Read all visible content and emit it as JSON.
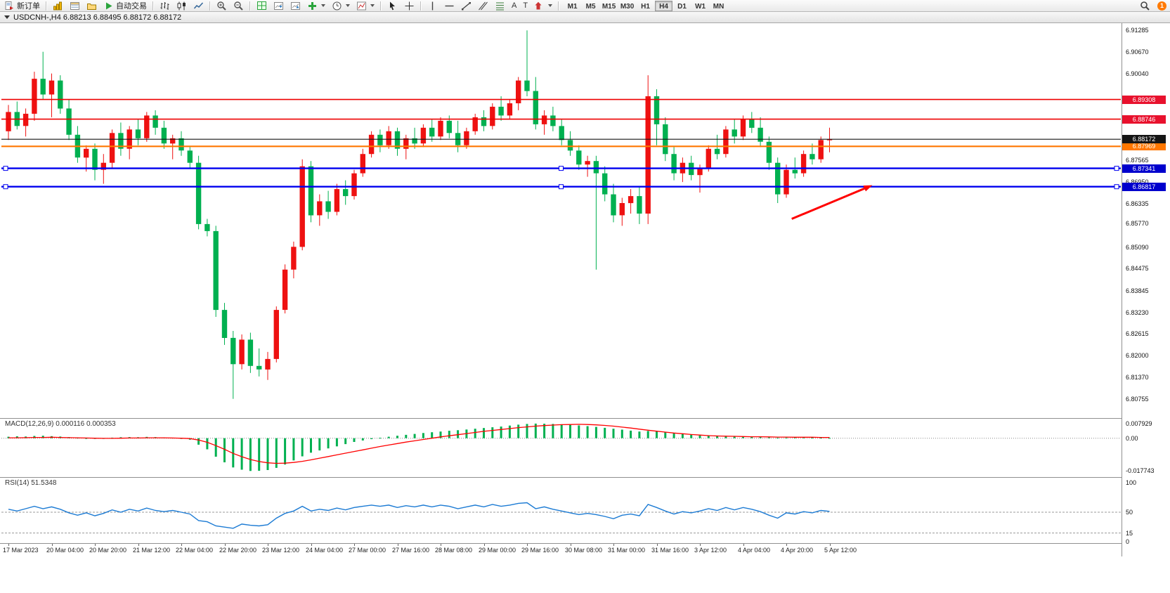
{
  "toolbar": {
    "new_order_label": "新订单",
    "auto_trading_label": "自动交易",
    "timeframes": [
      "M1",
      "M5",
      "M15",
      "M30",
      "H1",
      "H4",
      "D1",
      "W1",
      "MN"
    ],
    "active_timeframe": "H4",
    "notification_count": "1"
  },
  "chart_window": {
    "title": "USDCNH-,H4  6.88213 6.88495 6.88172 6.88172",
    "symbol": "USDCNH-",
    "timeframe": "H4",
    "ohlc": {
      "open": "6.88213",
      "high": "6.88495",
      "low": "6.88172",
      "close": "6.88172"
    }
  },
  "chart_data": [
    {
      "type": "candlestick",
      "title": "USDCNH- H4",
      "up_color": "#ee1111",
      "down_color": "#00b050",
      "price_axis": {
        "scale_max": 6.91486,
        "scale_min": 6.80212,
        "ticks": [
          "6.91285",
          "6.90670",
          "6.90040",
          "6.87565",
          "6.86950",
          "6.86335",
          "6.85770",
          "6.85090",
          "6.84475",
          "6.83845",
          "6.83230",
          "6.82615",
          "6.82000",
          "6.81370",
          "6.80755"
        ]
      },
      "time_labels": [
        "17 Mar 2023",
        "20 Mar 04:00",
        "20 Mar 20:00",
        "21 Mar 12:00",
        "22 Mar 04:00",
        "22 Mar 20:00",
        "23 Mar 12:00",
        "24 Mar 04:00",
        "27 Mar 00:00",
        "27 Mar 16:00",
        "28 Mar 08:00",
        "29 Mar 00:00",
        "29 Mar 16:00",
        "30 Mar 08:00",
        "31 Mar 00:00",
        "31 Mar 16:00",
        "3 Apr 12:00",
        "4 Apr 04:00",
        "4 Apr 20:00",
        "5 Apr 12:00"
      ],
      "hlines": [
        {
          "name": "resistance-line-1",
          "price": 6.89308,
          "label": "6.89308",
          "color": "#ee0000",
          "width": 1.6,
          "badge": "#e8112d",
          "selected": false
        },
        {
          "name": "resistance-line-2",
          "price": 6.88746,
          "label": "6.88746",
          "color": "#ee0000",
          "width": 1.6,
          "badge": "#e8112d",
          "selected": false
        },
        {
          "name": "pivot-line",
          "price": 6.87969,
          "label": "6.87969",
          "color": "#ff7700",
          "width": 2.2,
          "badge": "#ff7700",
          "selected": false
        },
        {
          "name": "support-line-1",
          "price": 6.87341,
          "label": "6.87341",
          "color": "#0000ee",
          "width": 2.4,
          "badge": "#0000cd",
          "selected": true
        },
        {
          "name": "support-line-2",
          "price": 6.86817,
          "label": "6.86817",
          "color": "#0000ee",
          "width": 2.4,
          "badge": "#0000cd",
          "selected": true
        },
        {
          "name": "current-price-line",
          "price": 6.88172,
          "label": "6.88172",
          "color": "#151515",
          "width": 1.2,
          "badge": "#151515",
          "selected": false
        }
      ],
      "arrow": {
        "x1_frac": 0.706,
        "price1": 6.859,
        "x2_frac": 0.778,
        "price2": 6.8686,
        "color": "#ff0000"
      },
      "candles": [
        [
          6.884,
          6.8915,
          6.8815,
          6.8895
        ],
        [
          6.8895,
          6.8925,
          6.8845,
          6.8855
        ],
        [
          6.8855,
          6.8905,
          6.8825,
          6.889
        ],
        [
          6.889,
          6.901,
          6.887,
          6.899
        ],
        [
          6.899,
          6.9067,
          6.893,
          6.8945
        ],
        [
          6.8945,
          6.9005,
          6.888,
          6.8985
        ],
        [
          6.8985,
          6.9,
          6.889,
          6.8905
        ],
        [
          6.8905,
          6.893,
          6.8815,
          6.883
        ],
        [
          6.883,
          6.8855,
          6.875,
          6.8765
        ],
        [
          6.8765,
          6.88,
          6.8725,
          6.879
        ],
        [
          6.879,
          6.8805,
          6.87,
          6.873
        ],
        [
          6.873,
          6.8775,
          6.869,
          6.875
        ],
        [
          6.875,
          6.8845,
          6.8735,
          6.8835
        ],
        [
          6.8835,
          6.8865,
          6.877,
          6.879
        ],
        [
          6.879,
          6.8855,
          6.876,
          6.8845
        ],
        [
          6.8845,
          6.8875,
          6.88,
          6.882
        ],
        [
          6.882,
          6.8895,
          6.881,
          6.8885
        ],
        [
          6.8885,
          6.89,
          6.883,
          6.885
        ],
        [
          6.885,
          6.887,
          6.879,
          6.8805
        ],
        [
          6.8805,
          6.883,
          6.876,
          6.882
        ],
        [
          6.882,
          6.884,
          6.877,
          6.8785
        ],
        [
          6.8785,
          6.8795,
          6.8735,
          6.875
        ],
        [
          6.875,
          6.877,
          6.856,
          6.8575
        ],
        [
          6.8575,
          6.859,
          6.854,
          6.8555
        ],
        [
          6.8555,
          6.857,
          6.831,
          6.833
        ],
        [
          6.833,
          6.835,
          6.823,
          6.825
        ],
        [
          6.825,
          6.827,
          6.8076,
          6.8175
        ],
        [
          6.8175,
          6.826,
          6.816,
          6.8245
        ],
        [
          6.8245,
          6.8265,
          6.815,
          6.817
        ],
        [
          6.817,
          6.822,
          6.814,
          6.816
        ],
        [
          6.816,
          6.821,
          6.813,
          6.819
        ],
        [
          6.819,
          6.834,
          6.818,
          6.833
        ],
        [
          6.833,
          6.846,
          6.832,
          6.8445
        ],
        [
          6.8445,
          6.8525,
          6.842,
          6.851
        ],
        [
          6.851,
          6.876,
          6.85,
          6.874
        ],
        [
          6.874,
          6.8755,
          6.858,
          6.86
        ],
        [
          6.86,
          6.866,
          6.857,
          6.864
        ],
        [
          6.864,
          6.867,
          6.859,
          6.861
        ],
        [
          6.861,
          6.869,
          6.86,
          6.8675
        ],
        [
          6.8675,
          6.87,
          6.863,
          6.8655
        ],
        [
          6.8655,
          6.873,
          6.8645,
          6.872
        ],
        [
          6.872,
          6.879,
          6.871,
          6.8775
        ],
        [
          6.8775,
          6.884,
          6.8765,
          6.883
        ],
        [
          6.883,
          6.8845,
          6.878,
          6.88
        ],
        [
          6.88,
          6.8855,
          6.879,
          6.884
        ],
        [
          6.884,
          6.885,
          6.877,
          6.879
        ],
        [
          6.879,
          6.883,
          6.876,
          6.882
        ],
        [
          6.882,
          6.885,
          6.879,
          6.8805
        ],
        [
          6.8805,
          6.886,
          6.8795,
          6.885
        ],
        [
          6.885,
          6.8875,
          6.881,
          6.8825
        ],
        [
          6.8825,
          6.888,
          6.8815,
          6.887
        ],
        [
          6.887,
          6.8885,
          6.882,
          6.8835
        ],
        [
          6.8835,
          6.887,
          6.878,
          6.88
        ],
        [
          6.88,
          6.885,
          6.879,
          6.884
        ],
        [
          6.884,
          6.889,
          6.883,
          6.888
        ],
        [
          6.888,
          6.89,
          6.884,
          6.8855
        ],
        [
          6.8855,
          6.892,
          6.8845,
          6.891
        ],
        [
          6.891,
          6.894,
          6.887,
          6.8885
        ],
        [
          6.8885,
          6.893,
          6.8875,
          6.892
        ],
        [
          6.892,
          6.8995,
          6.89,
          6.8985
        ],
        [
          6.8985,
          6.9128,
          6.894,
          6.8955
        ],
        [
          6.8955,
          6.8995,
          6.8845,
          6.886
        ],
        [
          6.886,
          6.89,
          6.883,
          6.8885
        ],
        [
          6.8885,
          6.891,
          6.884,
          6.8855
        ],
        [
          6.8855,
          6.8875,
          6.88,
          6.8815
        ],
        [
          6.8815,
          6.884,
          6.877,
          6.8785
        ],
        [
          6.8785,
          6.88,
          6.873,
          6.8745
        ],
        [
          6.8745,
          6.877,
          6.871,
          6.8755
        ],
        [
          6.8755,
          6.877,
          6.8445,
          6.872
        ],
        [
          6.872,
          6.874,
          6.864,
          6.866
        ],
        [
          6.866,
          6.869,
          6.858,
          6.86
        ],
        [
          6.86,
          6.865,
          6.857,
          6.8635
        ],
        [
          6.8635,
          6.8675,
          6.8605,
          6.8655
        ],
        [
          6.8655,
          6.868,
          6.8575,
          6.8605
        ],
        [
          6.8605,
          6.9,
          6.8575,
          6.894
        ],
        [
          6.894,
          6.896,
          6.88,
          6.886
        ],
        [
          6.886,
          6.888,
          6.8755,
          6.8775
        ],
        [
          6.8775,
          6.8795,
          6.87,
          6.872
        ],
        [
          6.872,
          6.8765,
          6.8695,
          6.875
        ],
        [
          6.875,
          6.877,
          6.87,
          6.8715
        ],
        [
          6.8715,
          6.8745,
          6.8665,
          6.8735
        ],
        [
          6.8735,
          6.88,
          6.8725,
          6.879
        ],
        [
          6.879,
          6.883,
          6.876,
          6.8775
        ],
        [
          6.8775,
          6.8855,
          6.8765,
          6.8845
        ],
        [
          6.8845,
          6.8875,
          6.8805,
          6.8825
        ],
        [
          6.8825,
          6.8885,
          6.8815,
          6.8875
        ],
        [
          6.8875,
          6.8895,
          6.8835,
          6.885
        ],
        [
          6.885,
          6.888,
          6.8795,
          6.881
        ],
        [
          6.881,
          6.8825,
          6.873,
          6.875
        ],
        [
          6.875,
          6.8765,
          6.8635,
          6.866
        ],
        [
          6.866,
          6.8745,
          6.865,
          6.873
        ],
        [
          6.873,
          6.8765,
          6.8705,
          6.872
        ],
        [
          6.872,
          6.8785,
          6.871,
          6.8775
        ],
        [
          6.8775,
          6.8805,
          6.8745,
          6.876
        ],
        [
          6.876,
          6.8825,
          6.875,
          6.8815
        ],
        [
          6.8815,
          6.885,
          6.878,
          6.8817
        ]
      ]
    },
    {
      "type": "macd",
      "label": "MACD(12,26,9)",
      "values_text": "0.000116 0.000353",
      "axis_labels": [
        "0.007929",
        "0.00",
        "-0.017743"
      ],
      "axis_values": [
        0.007929,
        0,
        -0.017743
      ],
      "range": [
        -0.021,
        0.0105
      ],
      "histogram_color": "#00b050",
      "signal_color": "#ff0000",
      "histogram": [
        0.0008,
        0.001,
        0.0009,
        0.0012,
        0.0013,
        0.0011,
        0.0009,
        0.0006,
        0.0002,
        0.0,
        -0.0003,
        -0.0001,
        0.0003,
        0.0005,
        0.0006,
        0.0005,
        0.0007,
        0.0006,
        0.0004,
        0.0002,
        -0.0002,
        -0.0008,
        -0.0035,
        -0.006,
        -0.01,
        -0.013,
        -0.0158,
        -0.017,
        -0.0177,
        -0.0176,
        -0.0172,
        -0.016,
        -0.0142,
        -0.012,
        -0.0098,
        -0.0078,
        -0.0066,
        -0.0055,
        -0.0044,
        -0.0032,
        -0.002,
        -0.0012,
        -0.0005,
        0.0002,
        0.0008,
        0.0013,
        0.0018,
        0.0023,
        0.0028,
        0.0032,
        0.0036,
        0.004,
        0.0043,
        0.0047,
        0.0051,
        0.0055,
        0.0059,
        0.0063,
        0.0068,
        0.0073,
        0.0077,
        0.0079,
        0.0078,
        0.0077,
        0.0075,
        0.0072,
        0.0069,
        0.0065,
        0.0061,
        0.0056,
        0.0051,
        0.0046,
        0.0041,
        0.0036,
        0.0039,
        0.0037,
        0.0032,
        0.0027,
        0.0022,
        0.0018,
        0.0015,
        0.0013,
        0.0012,
        0.0011,
        0.0011,
        0.001,
        0.0009,
        0.0007,
        0.0004,
        0.0002,
        0.0003,
        0.0004,
        0.0004,
        0.0003,
        0.0002,
        0.0001
      ],
      "signal": [
        0.0002,
        0.0002,
        0.0003,
        0.0004,
        0.0004,
        0.0005,
        0.0004,
        0.0003,
        0.0002,
        0.0001,
        0.0,
        -0.0001,
        -0.0001,
        0.0,
        0.0001,
        0.0001,
        0.0002,
        0.0002,
        0.0002,
        0.0001,
        0.0,
        -0.0002,
        -0.001,
        -0.0022,
        -0.004,
        -0.006,
        -0.0082,
        -0.01,
        -0.0115,
        -0.0126,
        -0.0133,
        -0.0136,
        -0.0135,
        -0.0131,
        -0.0125,
        -0.0117,
        -0.0108,
        -0.0099,
        -0.009,
        -0.0081,
        -0.0072,
        -0.0063,
        -0.0054,
        -0.0045,
        -0.0037,
        -0.0029,
        -0.0021,
        -0.0014,
        -0.0007,
        0.0,
        0.0007,
        0.0013,
        0.0019,
        0.0025,
        0.0031,
        0.0037,
        0.0042,
        0.0047,
        0.0052,
        0.0057,
        0.0061,
        0.0065,
        0.0068,
        0.0071,
        0.0073,
        0.0074,
        0.0075,
        0.0074,
        0.0072,
        0.0069,
        0.0065,
        0.006,
        0.0055,
        0.0049,
        0.0043,
        0.0038,
        0.0033,
        0.0028,
        0.0024,
        0.002,
        0.0017,
        0.0014,
        0.0012,
        0.0011,
        0.001,
        0.0009,
        0.0008,
        0.0008,
        0.0007,
        0.0006,
        0.0006,
        0.0005,
        0.0005,
        0.0005,
        0.0004,
        0.0004
      ]
    },
    {
      "type": "rsi",
      "label": "RSI(14)",
      "value_text": "51.5348",
      "axis_labels": [
        "100",
        "50",
        "15",
        "0"
      ],
      "axis_values": [
        100,
        50,
        15,
        0
      ],
      "levels": [
        50,
        15
      ],
      "range": [
        -2,
        108
      ],
      "line_color": "#1c7bd4",
      "values": [
        55,
        52,
        56,
        60,
        56,
        59,
        55,
        49,
        45,
        49,
        44,
        48,
        54,
        50,
        55,
        52,
        57,
        53,
        51,
        53,
        50,
        47,
        36,
        34,
        27,
        25,
        23,
        30,
        28,
        27,
        29,
        40,
        48,
        52,
        60,
        52,
        55,
        53,
        57,
        54,
        58,
        60,
        62,
        60,
        62,
        58,
        61,
        59,
        62,
        59,
        62,
        60,
        56,
        59,
        62,
        59,
        63,
        60,
        62,
        65,
        66,
        56,
        59,
        55,
        52,
        49,
        46,
        48,
        46,
        43,
        39,
        45,
        47,
        44,
        63,
        58,
        52,
        47,
        51,
        49,
        52,
        56,
        53,
        58,
        54,
        58,
        55,
        51,
        45,
        40,
        49,
        47,
        51,
        49,
        53,
        51.5
      ]
    }
  ]
}
